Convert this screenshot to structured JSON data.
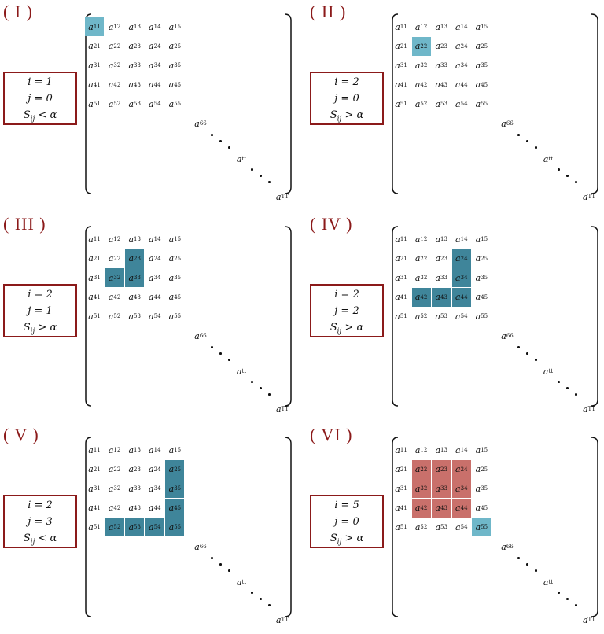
{
  "row_labels": [
    [
      "a",
      "11"
    ],
    [
      "a",
      "12"
    ],
    [
      "a",
      "13"
    ],
    [
      "a",
      "14"
    ],
    [
      "a",
      "15"
    ],
    [
      "a",
      "21"
    ],
    [
      "a",
      "22"
    ],
    [
      "a",
      "23"
    ],
    [
      "a",
      "24"
    ],
    [
      "a",
      "25"
    ],
    [
      "a",
      "31"
    ],
    [
      "a",
      "32"
    ],
    [
      "a",
      "33"
    ],
    [
      "a",
      "34"
    ],
    [
      "a",
      "35"
    ],
    [
      "a",
      "41"
    ],
    [
      "a",
      "42"
    ],
    [
      "a",
      "43"
    ],
    [
      "a",
      "44"
    ],
    [
      "a",
      "45"
    ],
    [
      "a",
      "51"
    ],
    [
      "a",
      "52"
    ],
    [
      "a",
      "53"
    ],
    [
      "a",
      "54"
    ],
    [
      "a",
      "55"
    ]
  ],
  "diag_labels": [
    [
      "a",
      "66"
    ],
    [
      "a",
      "tt"
    ],
    [
      "a",
      "TT"
    ]
  ],
  "colors": {
    "label_red": "#8b1a1a",
    "light_teal": "#6fb7c9",
    "dark_teal": "#3f859a",
    "red_fill": "#c9706b"
  },
  "panels": [
    {
      "label": "( I )",
      "i": "i = 1",
      "j": "j = 0",
      "s": "S",
      "sub": "ij",
      "op": " < α",
      "highlights": [
        {
          "style": "light",
          "cells": [
            "11"
          ]
        }
      ]
    },
    {
      "label": "( II )",
      "i": "i = 2",
      "j": "j = 0",
      "s": "S",
      "sub": "ij",
      "op": " > α",
      "highlights": [
        {
          "style": "light",
          "cells": [
            "22"
          ]
        }
      ]
    },
    {
      "label": "( III )",
      "i": "i = 2",
      "j": "j = 1",
      "s": "S",
      "sub": "ij",
      "op": " > α",
      "highlights": [
        {
          "style": "dark",
          "cells": [
            "23",
            "32",
            "33"
          ]
        }
      ]
    },
    {
      "label": "( IV )",
      "i": "i = 2",
      "j": "j = 2",
      "s": "S",
      "sub": "ij",
      "op": " > α",
      "highlights": [
        {
          "style": "dark",
          "cells": [
            "24",
            "34",
            "42",
            "43",
            "44"
          ]
        }
      ]
    },
    {
      "label": "( V )",
      "i": "i = 2",
      "j": "j = 3",
      "s": "S",
      "sub": "ij",
      "op": " < α",
      "highlights": [
        {
          "style": "dark",
          "cells": [
            "25",
            "35",
            "45",
            "52",
            "53",
            "54",
            "55"
          ]
        }
      ]
    },
    {
      "label": "( VI )",
      "i": "i = 5",
      "j": "j = 0",
      "s": "S",
      "sub": "ij",
      "op": " > α",
      "highlights": [
        {
          "style": "red",
          "cells": [
            "22",
            "23",
            "24",
            "32",
            "33",
            "34",
            "42",
            "43",
            "44"
          ]
        },
        {
          "style": "light",
          "cells": [
            "55"
          ]
        }
      ]
    }
  ]
}
